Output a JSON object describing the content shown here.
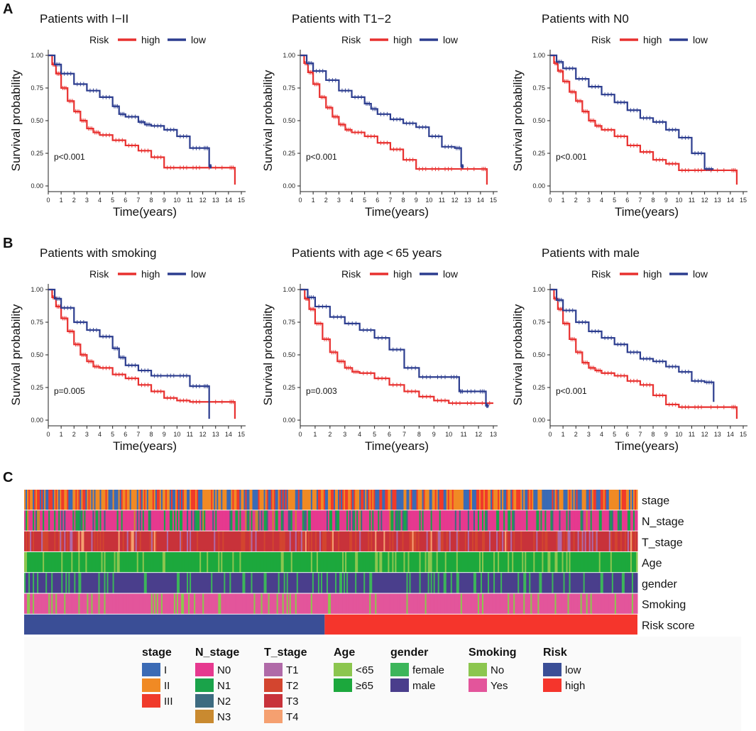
{
  "panels": [
    {
      "label": "A"
    },
    {
      "label": "B"
    },
    {
      "label": "C"
    }
  ],
  "chart_data": [
    {
      "type": "line",
      "title": "Patients with I−II",
      "legend_title": "Risk",
      "series_names": [
        "high",
        "low"
      ],
      "colors": {
        "high": "#e8302f",
        "low": "#2c3d8f"
      },
      "xlabel": "Time(years)",
      "ylabel": "Survival probability",
      "xlim": [
        0,
        15
      ],
      "ylim": [
        0,
        1
      ],
      "xticks": [
        0,
        1,
        2,
        3,
        4,
        5,
        6,
        7,
        8,
        9,
        10,
        11,
        12,
        13,
        14,
        15
      ],
      "yticks": [
        "0.00",
        "0.25",
        "0.50",
        "0.75",
        "1.00"
      ],
      "pvalue": "p<0.001",
      "series": [
        {
          "name": "high",
          "x": [
            0,
            0.3,
            0.6,
            1,
            1.5,
            2,
            2.5,
            3,
            3.5,
            4,
            5,
            6,
            7,
            8,
            9,
            10,
            11,
            12,
            14,
            14.5
          ],
          "y": [
            1,
            0.93,
            0.86,
            0.75,
            0.65,
            0.57,
            0.5,
            0.44,
            0.41,
            0.39,
            0.35,
            0.31,
            0.27,
            0.22,
            0.14,
            0.14,
            0.14,
            0.14,
            0.14,
            0.01
          ]
        },
        {
          "name": "low",
          "x": [
            0,
            0.5,
            1,
            2,
            3,
            4,
            5,
            5.5,
            6,
            7,
            7.5,
            8,
            9,
            10,
            11,
            12,
            12.5,
            12.7
          ],
          "y": [
            1,
            0.93,
            0.86,
            0.78,
            0.73,
            0.68,
            0.61,
            0.55,
            0.53,
            0.49,
            0.47,
            0.46,
            0.43,
            0.38,
            0.29,
            0.29,
            0.15,
            0.15
          ]
        }
      ]
    },
    {
      "type": "line",
      "title": "Patients with T1−2",
      "legend_title": "Risk",
      "series_names": [
        "high",
        "low"
      ],
      "colors": {
        "high": "#e8302f",
        "low": "#2c3d8f"
      },
      "xlabel": "Time(years)",
      "ylabel": "Survival probability",
      "xlim": [
        0,
        15
      ],
      "ylim": [
        0,
        1
      ],
      "xticks": [
        0,
        1,
        2,
        3,
        4,
        5,
        6,
        7,
        8,
        9,
        10,
        11,
        12,
        13,
        14,
        15
      ],
      "yticks": [
        "0.00",
        "0.25",
        "0.50",
        "0.75",
        "1.00"
      ],
      "pvalue": "p<0.001",
      "series": [
        {
          "name": "high",
          "x": [
            0,
            0.3,
            0.6,
            1,
            1.5,
            2,
            2.5,
            3,
            3.5,
            4,
            5,
            6,
            7,
            8,
            9,
            10,
            11,
            12,
            14,
            14.5
          ],
          "y": [
            1,
            0.94,
            0.87,
            0.78,
            0.68,
            0.6,
            0.53,
            0.47,
            0.43,
            0.41,
            0.38,
            0.33,
            0.28,
            0.2,
            0.13,
            0.13,
            0.13,
            0.13,
            0.13,
            0.01
          ]
        },
        {
          "name": "low",
          "x": [
            0,
            0.5,
            1,
            2,
            3,
            4,
            5,
            5.5,
            6,
            7,
            8,
            9,
            10,
            11,
            12,
            12.5,
            12.7
          ],
          "y": [
            1,
            0.94,
            0.88,
            0.81,
            0.73,
            0.68,
            0.63,
            0.59,
            0.55,
            0.51,
            0.48,
            0.45,
            0.38,
            0.3,
            0.29,
            0.15,
            0.15
          ]
        }
      ]
    },
    {
      "type": "line",
      "title": "Patients with N0",
      "legend_title": "Risk",
      "series_names": [
        "high",
        "low"
      ],
      "colors": {
        "high": "#e8302f",
        "low": "#2c3d8f"
      },
      "xlabel": "Time(years)",
      "ylabel": "Survival probability",
      "xlim": [
        0,
        15
      ],
      "ylim": [
        0,
        1
      ],
      "xticks": [
        0,
        1,
        2,
        3,
        4,
        5,
        6,
        7,
        8,
        9,
        10,
        11,
        12,
        13,
        14,
        15
      ],
      "yticks": [
        "0.00",
        "0.25",
        "0.50",
        "0.75",
        "1.00"
      ],
      "pvalue": "p<0.001",
      "series": [
        {
          "name": "high",
          "x": [
            0,
            0.3,
            0.6,
            1,
            1.5,
            2,
            2.5,
            3,
            3.5,
            4,
            5,
            6,
            7,
            8,
            9,
            10,
            11,
            12,
            14,
            14.5
          ],
          "y": [
            1,
            0.94,
            0.88,
            0.8,
            0.72,
            0.65,
            0.57,
            0.5,
            0.46,
            0.43,
            0.38,
            0.31,
            0.26,
            0.2,
            0.17,
            0.12,
            0.12,
            0.12,
            0.12,
            0.01
          ]
        },
        {
          "name": "low",
          "x": [
            0,
            0.5,
            1,
            2,
            3,
            4,
            5,
            6,
            7,
            8,
            9,
            10,
            11,
            12,
            12.7
          ],
          "y": [
            1,
            0.95,
            0.9,
            0.82,
            0.76,
            0.7,
            0.64,
            0.58,
            0.52,
            0.49,
            0.43,
            0.37,
            0.25,
            0.13,
            0.13
          ]
        }
      ]
    },
    {
      "type": "line",
      "title": "Patients with smoking",
      "legend_title": "Risk",
      "series_names": [
        "high",
        "low"
      ],
      "colors": {
        "high": "#e8302f",
        "low": "#2c3d8f"
      },
      "xlabel": "Time(years)",
      "ylabel": "Survival probability",
      "xlim": [
        0,
        15
      ],
      "ylim": [
        0,
        1
      ],
      "xticks": [
        0,
        1,
        2,
        3,
        4,
        5,
        6,
        7,
        8,
        9,
        10,
        11,
        12,
        13,
        14,
        15
      ],
      "yticks": [
        "0.00",
        "0.25",
        "0.50",
        "0.75",
        "1.00"
      ],
      "pvalue": "p=0.005",
      "series": [
        {
          "name": "high",
          "x": [
            0,
            0.3,
            0.6,
            1,
            1.5,
            2,
            2.5,
            3,
            3.5,
            4,
            5,
            6,
            7,
            8,
            9,
            10,
            11,
            12,
            14,
            14.5
          ],
          "y": [
            1,
            0.94,
            0.87,
            0.78,
            0.68,
            0.58,
            0.5,
            0.45,
            0.41,
            0.4,
            0.35,
            0.32,
            0.27,
            0.22,
            0.17,
            0.15,
            0.14,
            0.14,
            0.14,
            0.01
          ]
        },
        {
          "name": "low",
          "x": [
            0,
            0.5,
            1,
            2,
            3,
            4,
            5,
            5.5,
            6,
            7,
            8,
            9,
            10,
            11,
            12,
            12.5
          ],
          "y": [
            1,
            0.93,
            0.86,
            0.75,
            0.69,
            0.64,
            0.55,
            0.48,
            0.42,
            0.38,
            0.34,
            0.34,
            0.34,
            0.26,
            0.26,
            0.01
          ]
        }
      ]
    },
    {
      "type": "line",
      "title": "Patients with age < 65 years",
      "legend_title": "Risk",
      "series_names": [
        "high",
        "low"
      ],
      "colors": {
        "high": "#e8302f",
        "low": "#2c3d8f"
      },
      "xlabel": "Time(years)",
      "ylabel": "Survival probability",
      "xlim": [
        0,
        13
      ],
      "ylim": [
        0,
        1
      ],
      "xticks": [
        0,
        1,
        2,
        3,
        4,
        5,
        6,
        7,
        8,
        9,
        10,
        11,
        12,
        13
      ],
      "yticks": [
        "0.00",
        "0.25",
        "0.50",
        "0.75",
        "1.00"
      ],
      "pvalue": "p=0.003",
      "series": [
        {
          "name": "high",
          "x": [
            0,
            0.3,
            0.6,
            1,
            1.5,
            2,
            2.5,
            3,
            3.5,
            4,
            5,
            6,
            7,
            8,
            9,
            10,
            11,
            12,
            13
          ],
          "y": [
            1,
            0.93,
            0.85,
            0.74,
            0.62,
            0.52,
            0.45,
            0.4,
            0.37,
            0.36,
            0.32,
            0.27,
            0.22,
            0.18,
            0.15,
            0.13,
            0.13,
            0.13,
            0.13
          ]
        },
        {
          "name": "low",
          "x": [
            0,
            0.5,
            1,
            2,
            3,
            4,
            5,
            6,
            7,
            8,
            9,
            10,
            10.7,
            11,
            12,
            12.5,
            12.7
          ],
          "y": [
            1,
            0.94,
            0.87,
            0.79,
            0.74,
            0.69,
            0.63,
            0.54,
            0.4,
            0.33,
            0.33,
            0.33,
            0.22,
            0.22,
            0.22,
            0.11,
            0.11
          ]
        }
      ]
    },
    {
      "type": "line",
      "title": "Patients with male",
      "legend_title": "Risk",
      "series_names": [
        "high",
        "low"
      ],
      "colors": {
        "high": "#e8302f",
        "low": "#2c3d8f"
      },
      "xlabel": "Time(years)",
      "ylabel": "Survival probability",
      "xlim": [
        0,
        15
      ],
      "ylim": [
        0,
        1
      ],
      "xticks": [
        0,
        1,
        2,
        3,
        4,
        5,
        6,
        7,
        8,
        9,
        10,
        11,
        12,
        13,
        14,
        15
      ],
      "yticks": [
        "0.00",
        "0.25",
        "0.50",
        "0.75",
        "1.00"
      ],
      "pvalue": "p<0.001",
      "series": [
        {
          "name": "high",
          "x": [
            0,
            0.3,
            0.6,
            1,
            1.5,
            2,
            2.5,
            3,
            3.5,
            4,
            5,
            6,
            7,
            8,
            9,
            10,
            11,
            12,
            14,
            14.5
          ],
          "y": [
            1,
            0.93,
            0.85,
            0.74,
            0.62,
            0.52,
            0.44,
            0.4,
            0.38,
            0.36,
            0.34,
            0.3,
            0.27,
            0.19,
            0.12,
            0.1,
            0.1,
            0.1,
            0.1,
            0.01
          ]
        },
        {
          "name": "low",
          "x": [
            0,
            0.5,
            1,
            2,
            3,
            4,
            5,
            6,
            7,
            8,
            9,
            10,
            11,
            12,
            12.7
          ],
          "y": [
            1,
            0.92,
            0.84,
            0.75,
            0.68,
            0.63,
            0.58,
            0.52,
            0.47,
            0.45,
            0.41,
            0.37,
            0.3,
            0.29,
            0.14
          ]
        }
      ]
    },
    {
      "type": "heatmap",
      "rows": [
        "stage",
        "N_stage",
        "T_stage",
        "Age",
        "gender",
        "Smoking",
        "Risk score"
      ],
      "n_samples": 430,
      "risk_split_fraction": 0.49,
      "legend": [
        {
          "title": "stage",
          "items": [
            {
              "label": "I",
              "color": "#3b6bb5"
            },
            {
              "label": "II",
              "color": "#f08a24"
            },
            {
              "label": "III",
              "color": "#f03a2a"
            }
          ]
        },
        {
          "title": "N_stage",
          "items": [
            {
              "label": "N0",
              "color": "#e6398f"
            },
            {
              "label": "N1",
              "color": "#1aa34a"
            },
            {
              "label": "N2",
              "color": "#3d6b80"
            },
            {
              "label": "N3",
              "color": "#c98a30"
            }
          ]
        },
        {
          "title": "T_stage",
          "items": [
            {
              "label": "T1",
              "color": "#b06aa8"
            },
            {
              "label": "T2",
              "color": "#d3452f"
            },
            {
              "label": "T3",
              "color": "#c8323a"
            },
            {
              "label": "T4",
              "color": "#f5a070"
            }
          ]
        },
        {
          "title": "Age",
          "items": [
            {
              "label": "<65",
              "color": "#8cc64f"
            },
            {
              "label": "≥65",
              "color": "#1ca83d"
            }
          ]
        },
        {
          "title": "gender",
          "items": [
            {
              "label": "female",
              "color": "#3cb55a"
            },
            {
              "label": "male",
              "color": "#4a3e8c"
            }
          ]
        },
        {
          "title": "Smoking",
          "items": [
            {
              "label": "No",
              "color": "#8cc64f"
            },
            {
              "label": "Yes",
              "color": "#e3559b"
            }
          ]
        },
        {
          "title": "Risk",
          "items": [
            {
              "label": "low",
              "color": "#3a4e96"
            },
            {
              "label": "high",
              "color": "#f5352c"
            }
          ]
        }
      ]
    }
  ]
}
